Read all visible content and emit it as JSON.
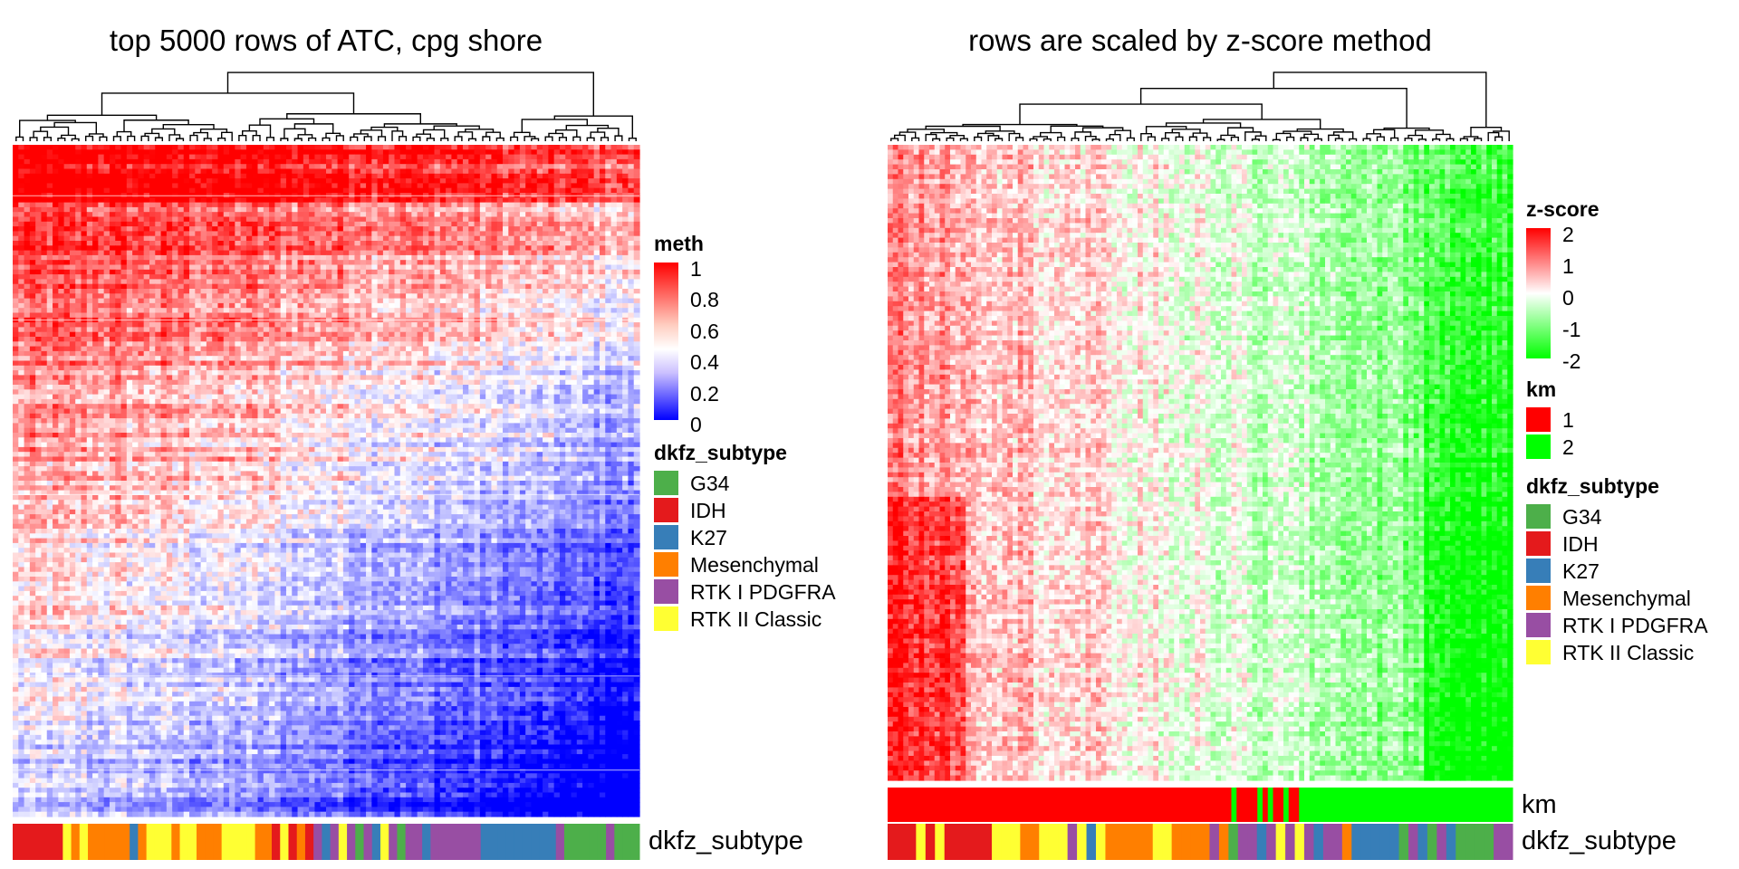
{
  "chart_data": [
    {
      "type": "heatmap",
      "title": "top 5000 rows of ATC, cpg shore",
      "n_rows": 5000,
      "value_range": [
        0,
        1
      ],
      "dendrogram": "columns",
      "legend_meth": {
        "title": "meth",
        "ticks": [
          "1",
          "0.8",
          "0.6",
          "0.4",
          "0.2",
          "0"
        ],
        "colors": [
          "#ff0000",
          "#ffffff",
          "#0000ff"
        ]
      },
      "annotation_label": "dkfz_subtype",
      "legend_subtype": {
        "title": "dkfz_subtype",
        "items": [
          {
            "label": "G34",
            "color": "#4daf4a"
          },
          {
            "label": "IDH",
            "color": "#e41a1c"
          },
          {
            "label": "K27",
            "color": "#377eb8"
          },
          {
            "label": "Mesenchymal",
            "color": "#ff7f00"
          },
          {
            "label": "RTK I PDGFRA",
            "color": "#984ea3"
          },
          {
            "label": "RTK II Classic",
            "color": "#ffff33"
          }
        ]
      }
    },
    {
      "type": "heatmap",
      "title": "rows are scaled by z-score method",
      "value_range": [
        -2,
        2
      ],
      "dendrogram": "columns",
      "legend_z": {
        "title": "z-score",
        "ticks": [
          "2",
          "1",
          "0",
          "-1",
          "-2"
        ],
        "colors": [
          "#ff0000",
          "#ffffff",
          "#00ff00"
        ]
      },
      "legend_km": {
        "title": "km",
        "items": [
          {
            "label": "1",
            "color": "#ff0000"
          },
          {
            "label": "2",
            "color": "#00ff00"
          }
        ]
      },
      "annotation_km_label": "km",
      "annotation_label": "dkfz_subtype",
      "legend_subtype": {
        "title": "dkfz_subtype",
        "items": [
          {
            "label": "G34",
            "color": "#4daf4a"
          },
          {
            "label": "IDH",
            "color": "#e41a1c"
          },
          {
            "label": "K27",
            "color": "#377eb8"
          },
          {
            "label": "Mesenchymal",
            "color": "#ff7f00"
          },
          {
            "label": "RTK I PDGFRA",
            "color": "#984ea3"
          },
          {
            "label": "RTK II Classic",
            "color": "#ffff33"
          }
        ]
      }
    }
  ]
}
